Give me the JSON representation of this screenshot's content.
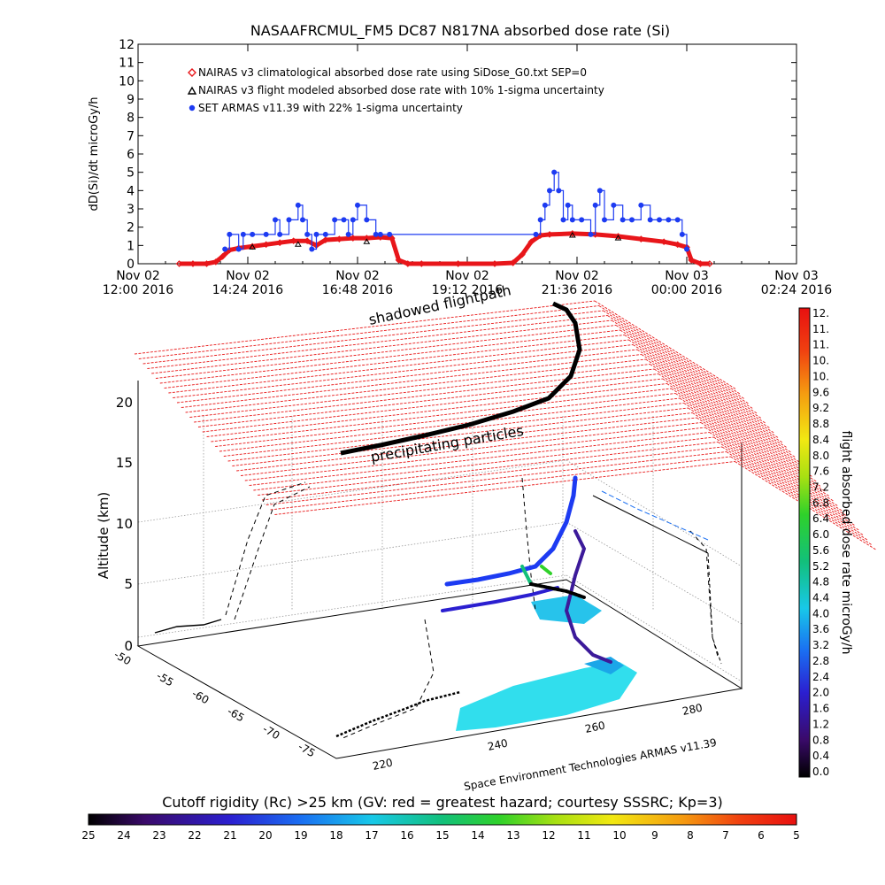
{
  "title": "NASAAFRCMUL_FM5 DC87 N817NA absorbed dose rate (Si)",
  "colors": {
    "nairas_clim": "#e8161a",
    "nairas_flight": "#000000",
    "armas": "#1d3bf2"
  },
  "chart_data": [
    {
      "type": "line",
      "title": "NASAAFRCMUL_FM5 DC87 N817NA absorbed dose rate (Si)",
      "ylabel": "dD(Si)/dt microGy/h",
      "ylim": [
        0,
        12
      ],
      "yticks": [
        "0",
        "1",
        "2",
        "3",
        "4",
        "5",
        "6",
        "7",
        "8",
        "9",
        "10",
        "11",
        "12"
      ],
      "xrange_hours": [
        0,
        14.4
      ],
      "xticks": [
        {
          "hour": 0,
          "line1": "Nov 02",
          "line2": "12:00 2016"
        },
        {
          "hour": 2.4,
          "line1": "Nov 02",
          "line2": "14:24 2016"
        },
        {
          "hour": 4.8,
          "line1": "Nov 02",
          "line2": "16:48 2016"
        },
        {
          "hour": 7.2,
          "line1": "Nov 02",
          "line2": "19:12 2016"
        },
        {
          "hour": 9.6,
          "line1": "Nov 02",
          "line2": "21:36 2016"
        },
        {
          "hour": 12.0,
          "line1": "Nov 03",
          "line2": "00:00 2016"
        },
        {
          "hour": 14.4,
          "line1": "Nov 03",
          "line2": "02:24 2016"
        }
      ],
      "legend": [
        {
          "label": "NAIRAS v3 climatological absorbed dose rate using SiDose_G0.txt SEP=0",
          "marker": "diamond",
          "color": "#e8161a"
        },
        {
          "label": "NAIRAS v3 flight modeled absorbed dose rate with 10% 1-sigma uncertainty",
          "marker": "triangle",
          "color": "#000000"
        },
        {
          "label": "SET ARMAS v11.39 with 22% 1-sigma uncertainty",
          "marker": "dot",
          "color": "#1d3bf2"
        }
      ],
      "series": [
        {
          "name": "NAIRAS v3 climatological absorbed dose rate using SiDose_G0.txt SEP=0",
          "x": [
            0.9,
            1.2,
            1.5,
            1.7,
            1.85,
            2.0,
            2.2,
            2.5,
            2.8,
            3.1,
            3.4,
            3.7,
            3.9,
            4.1,
            4.4,
            4.7,
            5.0,
            5.3,
            5.55,
            5.7,
            5.9,
            6.2,
            7.0,
            7.8,
            8.2,
            8.4,
            8.6,
            8.8,
            9.0,
            9.5,
            10.0,
            10.5,
            11.0,
            11.5,
            11.8,
            12.0,
            12.1,
            12.3,
            12.5
          ],
          "y": [
            0,
            0,
            0,
            0.1,
            0.4,
            0.75,
            0.85,
            0.95,
            1.05,
            1.15,
            1.25,
            1.25,
            1.0,
            1.3,
            1.35,
            1.4,
            1.4,
            1.45,
            1.4,
            0.2,
            0,
            0,
            0,
            0,
            0.05,
            0.5,
            1.2,
            1.55,
            1.6,
            1.65,
            1.6,
            1.5,
            1.35,
            1.2,
            1.05,
            0.9,
            0.2,
            0,
            0
          ]
        },
        {
          "name": "SET ARMAS v11.39 with 22% 1-sigma uncertainty",
          "x": [
            1.9,
            2.0,
            2.2,
            2.3,
            2.5,
            2.8,
            3.0,
            3.1,
            3.3,
            3.5,
            3.6,
            3.7,
            3.8,
            3.9,
            4.1,
            4.3,
            4.5,
            4.6,
            4.7,
            4.8,
            5.0,
            5.2,
            5.3,
            5.5,
            8.7,
            8.8,
            8.9,
            9.0,
            9.1,
            9.2,
            9.3,
            9.4,
            9.5,
            9.7,
            9.9,
            10.0,
            10.1,
            10.2,
            10.4,
            10.6,
            10.8,
            11.0,
            11.2,
            11.4,
            11.6,
            11.8,
            11.9,
            12.0
          ],
          "y": [
            0.8,
            1.6,
            0.8,
            1.6,
            1.6,
            1.6,
            2.4,
            1.6,
            2.4,
            3.2,
            2.4,
            1.6,
            0.8,
            1.6,
            1.6,
            2.4,
            2.4,
            1.6,
            2.4,
            3.2,
            2.4,
            1.6,
            1.6,
            1.6,
            1.6,
            2.4,
            3.2,
            4.0,
            5.0,
            4.0,
            2.4,
            3.2,
            2.4,
            2.4,
            1.6,
            3.2,
            4.0,
            2.4,
            3.2,
            2.4,
            2.4,
            3.2,
            2.4,
            2.4,
            2.4,
            2.4,
            1.6,
            0.8
          ]
        },
        {
          "name": "NAIRAS v3 flight modeled absorbed dose rate with 10% 1-sigma uncertainty",
          "x": [
            2.5,
            3.5,
            5.0,
            9.5,
            10.5
          ],
          "y": [
            0.9,
            1.05,
            1.2,
            1.55,
            1.4
          ]
        }
      ]
    },
    {
      "type": "surface",
      "zlabel": "Altitude (km)",
      "zticks": [
        "0",
        "5",
        "10",
        "15",
        "20"
      ],
      "lat_ticks": [
        "-50",
        "-55",
        "-60",
        "-65",
        "-70",
        "-75"
      ],
      "lon_ticks": [
        "220",
        "240",
        "260",
        "280"
      ],
      "annotations": [
        "shadowed flightpath",
        "precipitating particles"
      ],
      "credit": "Space Environment Technologies ARMAS v11.39",
      "colorbar_right": {
        "label": "flight absorbed dose rate microGy/h",
        "ticks": [
          "12.",
          "11.",
          "11.",
          "10.",
          "10.",
          "9.6",
          "9.2",
          "8.8",
          "8.4",
          "8.0",
          "7.6",
          "7.2",
          "6.8",
          "6.4",
          "6.0",
          "5.6",
          "5.2",
          "4.8",
          "4.4",
          "4.0",
          "3.6",
          "3.2",
          "2.8",
          "2.4",
          "2.0",
          "1.6",
          "1.2",
          "0.8",
          "0.4",
          "0.0"
        ]
      },
      "colorbar_bottom": {
        "label": "Cutoff rigidity (Rc) >25 km (GV: red = greatest hazard; courtesy SSSRC; Kp=3)",
        "ticks": [
          "25",
          "24",
          "23",
          "22",
          "21",
          "20",
          "19",
          "18",
          "17",
          "16",
          "15",
          "14",
          "13",
          "12",
          "11",
          "10",
          "9",
          "8",
          "7",
          "6",
          "5"
        ]
      }
    }
  ]
}
